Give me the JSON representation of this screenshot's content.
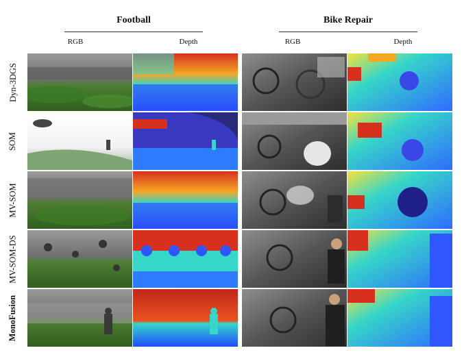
{
  "groups": [
    {
      "title": "Football",
      "columns": [
        "RGB",
        "Depth"
      ]
    },
    {
      "title": "Bike Repair",
      "columns": [
        "RGB",
        "Depth"
      ]
    }
  ],
  "methods": [
    "Dyn-3DGS",
    "SOM",
    "MV-SOM",
    "MV-SOM-DS",
    "MonoFusion"
  ],
  "highlighted_method": "MonoFusion",
  "colors": {
    "depth_near": "#1e3cff",
    "depth_mid": "#36d6c8",
    "depth_mid2": "#f5e23a",
    "depth_far": "#d7301f",
    "grass": "#3f7d2a",
    "sky": "#ffffff"
  }
}
